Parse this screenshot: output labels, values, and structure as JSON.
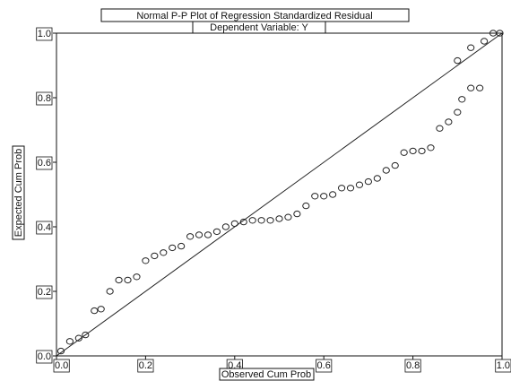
{
  "chart_data": {
    "type": "scatter",
    "title": "Normal P-P Plot of Regression Standardized Residual",
    "subtitle": "Dependent Variable: Y",
    "xlabel": "Observed Cum Prob",
    "ylabel": "Expected Cum Prob",
    "xlim": [
      0,
      1
    ],
    "ylim": [
      0,
      1
    ],
    "x_ticks": [
      "0.0",
      "0.2",
      "0.4",
      "0.6",
      "0.8",
      "1.0"
    ],
    "y_ticks": [
      "0.0",
      "0.2",
      "0.4",
      "0.6",
      "0.8",
      "1.0"
    ],
    "reference_line": {
      "from": [
        0,
        0
      ],
      "to": [
        1,
        1
      ]
    },
    "grid": false,
    "marker": "hollow-circle",
    "points": [
      [
        0.01,
        0.015
      ],
      [
        0.03,
        0.045
      ],
      [
        0.05,
        0.055
      ],
      [
        0.065,
        0.065
      ],
      [
        0.085,
        0.14
      ],
      [
        0.1,
        0.145
      ],
      [
        0.12,
        0.2
      ],
      [
        0.14,
        0.235
      ],
      [
        0.16,
        0.235
      ],
      [
        0.18,
        0.245
      ],
      [
        0.2,
        0.295
      ],
      [
        0.22,
        0.31
      ],
      [
        0.24,
        0.32
      ],
      [
        0.26,
        0.335
      ],
      [
        0.28,
        0.34
      ],
      [
        0.3,
        0.37
      ],
      [
        0.32,
        0.375
      ],
      [
        0.34,
        0.375
      ],
      [
        0.36,
        0.385
      ],
      [
        0.38,
        0.4
      ],
      [
        0.4,
        0.41
      ],
      [
        0.42,
        0.415
      ],
      [
        0.44,
        0.42
      ],
      [
        0.46,
        0.42
      ],
      [
        0.48,
        0.42
      ],
      [
        0.5,
        0.425
      ],
      [
        0.52,
        0.43
      ],
      [
        0.54,
        0.44
      ],
      [
        0.56,
        0.465
      ],
      [
        0.58,
        0.495
      ],
      [
        0.6,
        0.495
      ],
      [
        0.62,
        0.5
      ],
      [
        0.64,
        0.52
      ],
      [
        0.66,
        0.52
      ],
      [
        0.68,
        0.53
      ],
      [
        0.7,
        0.54
      ],
      [
        0.72,
        0.55
      ],
      [
        0.74,
        0.575
      ],
      [
        0.76,
        0.59
      ],
      [
        0.78,
        0.63
      ],
      [
        0.8,
        0.635
      ],
      [
        0.82,
        0.635
      ],
      [
        0.84,
        0.645
      ],
      [
        0.86,
        0.705
      ],
      [
        0.88,
        0.725
      ],
      [
        0.9,
        0.755
      ],
      [
        0.91,
        0.795
      ],
      [
        0.93,
        0.83
      ],
      [
        0.95,
        0.83
      ],
      [
        0.9,
        0.915
      ],
      [
        0.93,
        0.955
      ],
      [
        0.96,
        0.975
      ],
      [
        0.98,
        1.0
      ],
      [
        0.995,
        1.0
      ]
    ],
    "colors": {
      "axis": "#111111",
      "line": "#222222",
      "marker": "#222222",
      "background": "#ffffff"
    }
  }
}
